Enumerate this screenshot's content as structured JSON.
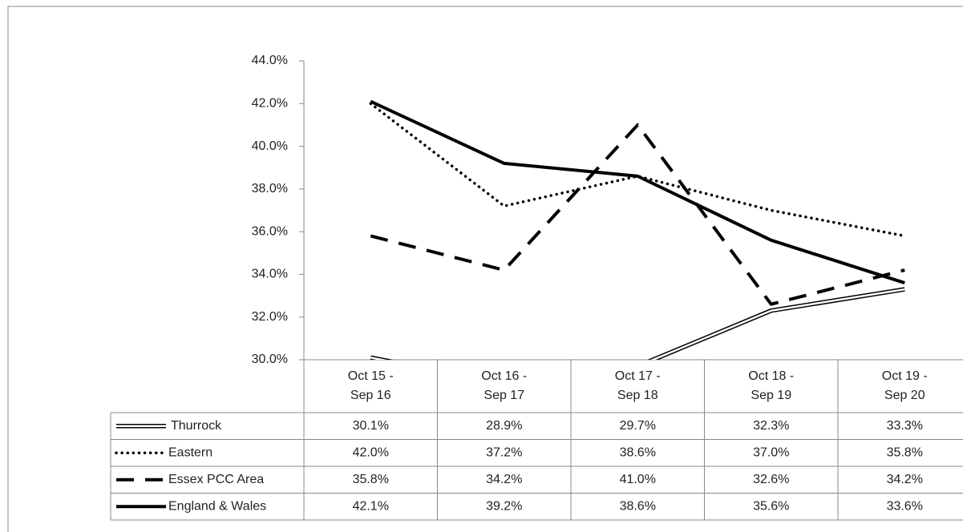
{
  "chart_data": {
    "type": "line",
    "categories": [
      "Oct 15 - Sep 16",
      "Oct 16 - Sep 17",
      "Oct 17 - Sep 18",
      "Oct 18 - Sep 19",
      "Oct 19 - Sep 20"
    ],
    "ylim": [
      30,
      44
    ],
    "yticks": [
      {
        "value": 30,
        "label": "30.0%"
      },
      {
        "value": 32,
        "label": "32.0%"
      },
      {
        "value": 34,
        "label": "34.0%"
      },
      {
        "value": 36,
        "label": "36.0%"
      },
      {
        "value": 38,
        "label": "38.0%"
      },
      {
        "value": 40,
        "label": "40.0%"
      },
      {
        "value": 42,
        "label": "42.0%"
      },
      {
        "value": 44,
        "label": "44.0%"
      }
    ],
    "grid": false,
    "legend": "table",
    "series": [
      {
        "name": "Thurrock",
        "color": "#000000",
        "style": "double",
        "values": [
          30.1,
          28.9,
          29.7,
          32.3,
          33.3
        ],
        "value_labels": [
          "30.1%",
          "28.9%",
          "29.7%",
          "32.3%",
          "33.3%"
        ]
      },
      {
        "name": "Eastern",
        "color": "#000000",
        "style": "dotted",
        "values": [
          42.0,
          37.2,
          38.6,
          37.0,
          35.8
        ],
        "value_labels": [
          "42.0%",
          "37.2%",
          "38.6%",
          "37.0%",
          "35.8%"
        ]
      },
      {
        "name": "Essex PCC Area",
        "color": "#000000",
        "style": "dashed",
        "values": [
          35.8,
          34.2,
          41.0,
          32.6,
          34.2
        ],
        "value_labels": [
          "35.8%",
          "34.2%",
          "41.0%",
          "32.6%",
          "34.2%"
        ]
      },
      {
        "name": "England & Wales",
        "color": "#000000",
        "style": "solid",
        "values": [
          42.1,
          39.2,
          38.6,
          35.6,
          33.6
        ],
        "value_labels": [
          "42.1%",
          "39.2%",
          "38.6%",
          "35.6%",
          "33.6%"
        ]
      }
    ]
  }
}
